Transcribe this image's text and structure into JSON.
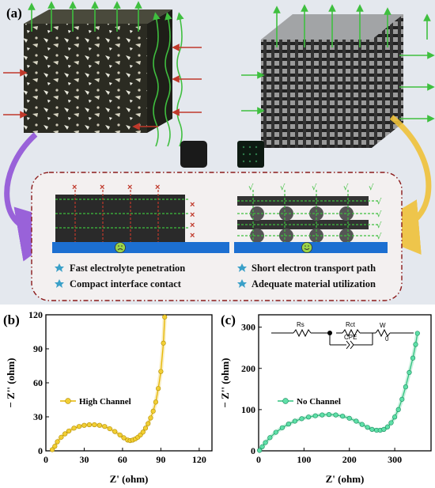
{
  "panel_a": {
    "label": "(a)",
    "features_left": [
      "Fast electrolyte penetration",
      "Compact interface contact"
    ],
    "features_right": [
      "Short electron transport path",
      "Adequate material utilization"
    ],
    "colors": {
      "green_arrow": "#3fbf3f",
      "red_arrow": "#c0392b",
      "substrate": "#1c6fd1",
      "box_border": "#8b1a1a",
      "purple": "#8d4bd6",
      "yellow": "#f0c23a"
    }
  },
  "panel_b": {
    "label": "(b)",
    "chart_data": {
      "type": "line",
      "xlabel": "Z' (ohm)",
      "ylabel": "− Z'' (ohm)",
      "xlim": [
        0,
        130
      ],
      "ylim": [
        0,
        120
      ],
      "xticks": [
        "0",
        "30",
        "60",
        "90",
        "120"
      ],
      "yticks": [
        "0",
        "30",
        "60",
        "90",
        "120"
      ],
      "xtick_values": [
        0,
        30,
        60,
        90,
        120
      ],
      "ytick_values": [
        0,
        30,
        60,
        90,
        120
      ],
      "series": [
        {
          "name": "High Channel",
          "color": "#e6b600",
          "x": [
            5,
            7,
            9,
            12,
            15,
            18,
            22,
            26,
            30,
            34,
            38,
            42,
            46,
            50,
            54,
            58,
            61,
            64,
            66,
            68,
            70,
            72,
            74,
            76,
            78,
            80,
            82,
            84,
            86,
            88,
            90,
            92,
            93
          ],
          "y": [
            1,
            4,
            8,
            12,
            15,
            17.5,
            20,
            21.5,
            22.5,
            23,
            23,
            22.5,
            21.5,
            19.5,
            17,
            14,
            11.5,
            9.5,
            9,
            9.5,
            10.5,
            12,
            14,
            16.5,
            20,
            24,
            29,
            35,
            43,
            55,
            70,
            95,
            118
          ]
        }
      ]
    }
  },
  "panel_c": {
    "label": "(c)",
    "circuit_labels": {
      "rs": "Rs",
      "rct": "Rct",
      "w": "W",
      "w_sub": "0",
      "cpe": "CPE"
    },
    "chart_data": {
      "type": "line",
      "xlabel": "Z' (ohm)",
      "ylabel": "− Z'' (ohm)",
      "xlim": [
        0,
        380
      ],
      "ylim": [
        0,
        330
      ],
      "xticks": [
        "0",
        "100",
        "200",
        "300"
      ],
      "yticks": [
        "0",
        "100",
        "200",
        "300"
      ],
      "xtick_values": [
        0,
        100,
        200,
        300
      ],
      "ytick_values": [
        0,
        100,
        200,
        300
      ],
      "series": [
        {
          "name": "No Channel",
          "color": "#2ec27e",
          "x": [
            2,
            8,
            15,
            25,
            38,
            52,
            66,
            80,
            95,
            110,
            125,
            140,
            155,
            170,
            185,
            200,
            215,
            228,
            240,
            250,
            260,
            268,
            276,
            284,
            292,
            300,
            308,
            316,
            324,
            332,
            340,
            346,
            350
          ],
          "y": [
            1,
            10,
            20,
            32,
            45,
            56,
            65,
            72,
            78,
            82,
            85,
            87,
            88,
            87,
            84,
            79,
            72,
            64,
            57,
            52,
            50,
            50,
            52,
            58,
            68,
            82,
            100,
            125,
            155,
            190,
            225,
            258,
            285
          ]
        }
      ]
    }
  }
}
